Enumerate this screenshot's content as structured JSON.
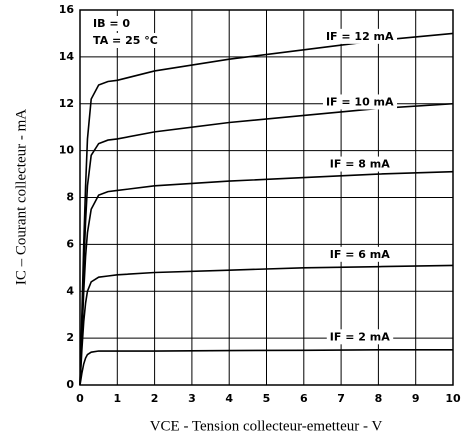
{
  "chart_data": {
    "type": "line",
    "xlabel": "VCE - Tension collecteur-emetteur - V",
    "ylabel": "IC – Courant collecteur - mA",
    "annotations": [
      "IB = 0",
      "TA = 25 °C"
    ],
    "x": [
      0,
      0.05,
      0.1,
      0.15,
      0.2,
      0.3,
      0.5,
      0.75,
      1,
      2,
      4,
      6,
      8,
      10
    ],
    "series": [
      {
        "name": "IF = 12 mA",
        "color": "#000000",
        "values": [
          0,
          3,
          6,
          8.5,
          10.5,
          12.2,
          12.8,
          12.95,
          13.0,
          13.4,
          13.9,
          14.3,
          14.7,
          15.0
        ]
      },
      {
        "name": "IF = 10 mA",
        "color": "#000000",
        "values": [
          0,
          2.5,
          5,
          7,
          8.5,
          9.8,
          10.3,
          10.45,
          10.5,
          10.8,
          11.2,
          11.5,
          11.8,
          12.0
        ]
      },
      {
        "name": "IF = 8 mA",
        "color": "#000000",
        "values": [
          0,
          2,
          4,
          5.5,
          6.5,
          7.5,
          8.1,
          8.25,
          8.3,
          8.5,
          8.7,
          8.85,
          9.0,
          9.1
        ]
      },
      {
        "name": "IF = 6 mA",
        "color": "#000000",
        "values": [
          0,
          1.5,
          2.7,
          3.5,
          4.0,
          4.4,
          4.6,
          4.65,
          4.7,
          4.8,
          4.9,
          5.0,
          5.05,
          5.1
        ]
      },
      {
        "name": "IF = 2 mA",
        "color": "#000000",
        "values": [
          0,
          0.5,
          0.9,
          1.15,
          1.3,
          1.4,
          1.45,
          1.45,
          1.45,
          1.45,
          1.47,
          1.48,
          1.5,
          1.5
        ]
      }
    ],
    "xlim": [
      0,
      10
    ],
    "xticks": [
      0,
      1,
      2,
      3,
      4,
      5,
      6,
      7,
      8,
      9,
      10
    ],
    "ylim": [
      0,
      16
    ],
    "yticks": [
      0,
      2,
      4,
      6,
      8,
      10,
      12,
      14,
      16
    ],
    "grid": true
  }
}
